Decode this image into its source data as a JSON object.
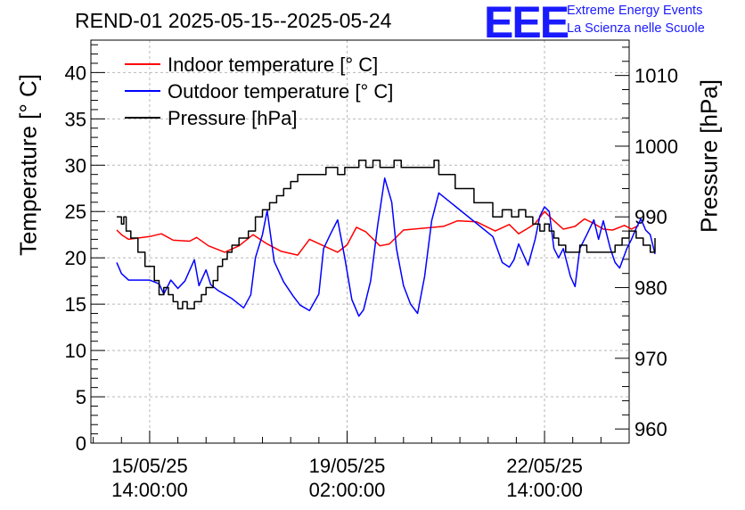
{
  "title": "REND-01 2025-05-15--2025-05-24",
  "logo": {
    "mark": "EEE",
    "line1": "Extreme Energy Events",
    "line2": "La Scienza nelle Scuole",
    "color": "#1a1aff"
  },
  "chart_data": {
    "type": "line",
    "title": "REND-01 2025-05-15--2025-05-24",
    "ylabel": "Temperature [° C]",
    "ylabel_right": "Pressure [hPa]",
    "xlabel": "",
    "x_units": "hours since 15/05/25 14:00:00",
    "xlim": [
      -25,
      204
    ],
    "ylim": [
      0,
      43.5
    ],
    "ylim_right": [
      958,
      1015
    ],
    "x_ticks": [
      {
        "x": 0,
        "line1": "15/05/25",
        "line2": "14:00:00"
      },
      {
        "x": 84,
        "line1": "19/05/25",
        "line2": "02:00:00"
      },
      {
        "x": 168,
        "line1": "22/05/25",
        "line2": "14:00:00"
      }
    ],
    "y_ticks": [
      "0",
      "5",
      "10",
      "15",
      "20",
      "25",
      "30",
      "35",
      "40"
    ],
    "y_ticks_right": [
      "960",
      "970",
      "980",
      "990",
      "1000",
      "1010"
    ],
    "grid": true,
    "legend_position": "top-left",
    "series": [
      {
        "name": "Indoor temperature [° C]",
        "color": "#ff0000",
        "axis": "left",
        "points": [
          [
            -14,
            23.0
          ],
          [
            -12,
            22.5
          ],
          [
            -9,
            22.0
          ],
          [
            0,
            22.3
          ],
          [
            5,
            22.6
          ],
          [
            10,
            21.9
          ],
          [
            17,
            21.8
          ],
          [
            20,
            22.2
          ],
          [
            25,
            21.3
          ],
          [
            32,
            20.6
          ],
          [
            38,
            21.3
          ],
          [
            44,
            22.5
          ],
          [
            50,
            21.5
          ],
          [
            56,
            20.7
          ],
          [
            63,
            20.3
          ],
          [
            68,
            22.0
          ],
          [
            74,
            21.3
          ],
          [
            80,
            20.6
          ],
          [
            84,
            21.4
          ],
          [
            88,
            23.3
          ],
          [
            92,
            22.8
          ],
          [
            98,
            21.3
          ],
          [
            102,
            21.5
          ],
          [
            108,
            23.0
          ],
          [
            125,
            23.4
          ],
          [
            131,
            24.0
          ],
          [
            139,
            23.9
          ],
          [
            147,
            22.9
          ],
          [
            153,
            23.6
          ],
          [
            157,
            22.6
          ],
          [
            161,
            23.2
          ],
          [
            164,
            23.7
          ],
          [
            168,
            25.0
          ],
          [
            172,
            24.0
          ],
          [
            176,
            23.1
          ],
          [
            181,
            23.4
          ],
          [
            185,
            24.2
          ],
          [
            189,
            23.7
          ],
          [
            193,
            23.1
          ],
          [
            197,
            23.0
          ],
          [
            202,
            23.5
          ],
          [
            205,
            23.1
          ],
          [
            208,
            23.5
          ]
        ]
      },
      {
        "name": "Outdoor temperature [° C]",
        "color": "#0000ff",
        "axis": "left",
        "points": [
          [
            -14,
            19.5
          ],
          [
            -12,
            18.3
          ],
          [
            -9,
            17.6
          ],
          [
            0,
            17.6
          ],
          [
            4,
            17.2
          ],
          [
            6,
            16.1
          ],
          [
            9,
            17.6
          ],
          [
            12,
            16.7
          ],
          [
            15,
            17.5
          ],
          [
            19,
            19.8
          ],
          [
            21,
            17.0
          ],
          [
            24,
            18.7
          ],
          [
            26,
            17.1
          ],
          [
            29,
            16.5
          ],
          [
            35,
            15.6
          ],
          [
            40,
            14.6
          ],
          [
            43,
            16.0
          ],
          [
            45,
            20.0
          ],
          [
            48,
            22.5
          ],
          [
            50,
            25.1
          ],
          [
            53,
            19.6
          ],
          [
            57,
            17.4
          ],
          [
            61,
            15.9
          ],
          [
            64,
            14.9
          ],
          [
            68,
            14.3
          ],
          [
            72,
            16.1
          ],
          [
            74,
            21.0
          ],
          [
            77,
            22.6
          ],
          [
            80,
            24.1
          ],
          [
            83,
            20.0
          ],
          [
            86,
            15.5
          ],
          [
            89,
            13.7
          ],
          [
            91,
            14.4
          ],
          [
            94,
            17.5
          ],
          [
            97,
            23.5
          ],
          [
            100,
            28.6
          ],
          [
            103,
            26.0
          ],
          [
            105,
            21.0
          ],
          [
            108,
            17.0
          ],
          [
            111,
            15.0
          ],
          [
            114,
            14.0
          ],
          [
            117,
            18.0
          ],
          [
            120,
            24.0
          ],
          [
            123,
            27.0
          ],
          [
            146,
            22.3
          ],
          [
            150,
            19.5
          ],
          [
            153,
            19.0
          ],
          [
            155,
            19.8
          ],
          [
            157,
            21.5
          ],
          [
            161,
            19.2
          ],
          [
            164,
            22.0
          ],
          [
            166,
            24.5
          ],
          [
            168,
            25.5
          ],
          [
            170,
            25.0
          ],
          [
            172,
            21.0
          ],
          [
            174,
            20.0
          ],
          [
            176,
            21.0
          ],
          [
            179,
            18.0
          ],
          [
            181,
            16.9
          ],
          [
            183,
            21.0
          ],
          [
            186,
            22.5
          ],
          [
            189,
            24.1
          ],
          [
            191,
            22.0
          ],
          [
            193,
            24.0
          ],
          [
            196,
            21.0
          ],
          [
            198,
            19.5
          ],
          [
            200,
            18.9
          ],
          [
            203,
            21.0
          ],
          [
            205,
            22.0
          ],
          [
            207,
            23.2
          ],
          [
            209,
            24.2
          ],
          [
            211,
            23.0
          ],
          [
            213,
            22.5
          ],
          [
            215,
            20.4
          ]
        ]
      },
      {
        "name": "Pressure [hPa]",
        "color": "#000000",
        "axis": "right",
        "points": [
          [
            -14,
            990
          ],
          [
            -12,
            989
          ],
          [
            -11,
            990
          ],
          [
            -10,
            988
          ],
          [
            -8,
            987
          ],
          [
            -5,
            985
          ],
          [
            -2,
            983
          ],
          [
            2,
            981
          ],
          [
            4,
            979
          ],
          [
            6,
            980
          ],
          [
            8,
            979
          ],
          [
            10,
            978
          ],
          [
            12,
            977
          ],
          [
            14,
            978
          ],
          [
            16,
            977
          ],
          [
            19,
            978
          ],
          [
            22,
            979
          ],
          [
            24,
            980
          ],
          [
            27,
            981
          ],
          [
            29,
            983
          ],
          [
            31,
            984
          ],
          [
            33,
            985
          ],
          [
            35,
            986
          ],
          [
            38,
            987
          ],
          [
            42,
            988
          ],
          [
            45,
            990
          ],
          [
            48,
            991
          ],
          [
            51,
            992
          ],
          [
            54,
            993
          ],
          [
            57,
            994
          ],
          [
            60,
            995
          ],
          [
            63,
            996
          ],
          [
            66,
            996
          ],
          [
            69,
            996
          ],
          [
            72,
            996
          ],
          [
            75,
            997
          ],
          [
            78,
            997
          ],
          [
            80,
            996
          ],
          [
            83,
            997
          ],
          [
            86,
            997
          ],
          [
            89,
            998
          ],
          [
            92,
            997
          ],
          [
            95,
            998
          ],
          [
            98,
            997
          ],
          [
            101,
            997
          ],
          [
            104,
            998
          ],
          [
            107,
            997
          ],
          [
            110,
            997
          ],
          [
            114,
            997
          ],
          [
            117,
            997
          ],
          [
            121,
            998
          ],
          [
            123,
            996
          ],
          [
            130,
            994
          ],
          [
            138,
            992
          ],
          [
            146,
            990
          ],
          [
            150,
            991
          ],
          [
            154,
            990
          ],
          [
            157,
            991
          ],
          [
            160,
            990
          ],
          [
            163,
            989
          ],
          [
            166,
            988
          ],
          [
            168,
            989
          ],
          [
            170,
            988
          ],
          [
            172,
            987
          ],
          [
            174,
            986
          ],
          [
            177,
            985
          ],
          [
            180,
            985
          ],
          [
            183,
            986
          ],
          [
            186,
            985
          ],
          [
            189,
            985
          ],
          [
            192,
            985
          ],
          [
            195,
            985
          ],
          [
            198,
            986
          ],
          [
            201,
            987
          ],
          [
            204,
            988
          ],
          [
            207,
            987
          ],
          [
            210,
            986
          ],
          [
            213,
            985
          ],
          [
            215,
            987
          ]
        ]
      }
    ]
  }
}
